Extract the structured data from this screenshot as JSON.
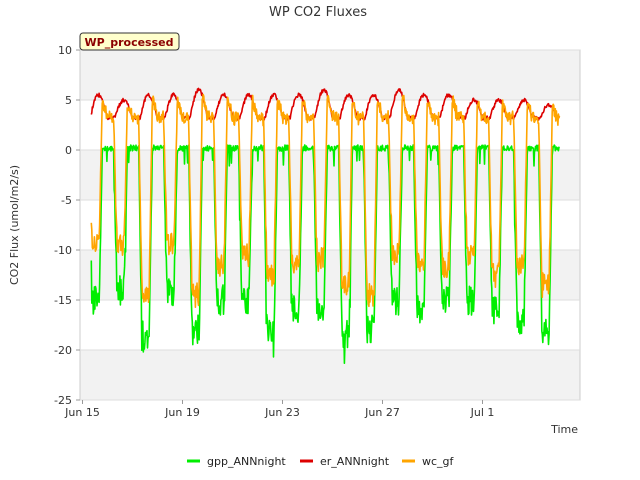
{
  "chart_data": {
    "type": "line",
    "title": "WP CO2 Fluxes",
    "badge": "WP_processed",
    "xlabel": "Time",
    "ylabel": "CO2 Flux (umol/m2/s)",
    "ylim": [
      -25,
      10
    ],
    "yticks": [
      10,
      5,
      0,
      -5,
      -10,
      -15,
      -20,
      -25
    ],
    "xlim_days": [
      -0.1,
      19.9
    ],
    "xticks": [
      {
        "day": 0,
        "label": "Jun 15"
      },
      {
        "day": 4,
        "label": "Jun 19"
      },
      {
        "day": 8,
        "label": "Jun 23"
      },
      {
        "day": 12,
        "label": "Jun 27"
      },
      {
        "day": 16,
        "label": "Jul 1"
      }
    ],
    "bands": [
      [
        5,
        10
      ],
      [
        -5,
        0
      ],
      [
        -15,
        -10
      ],
      [
        -25,
        -20
      ]
    ],
    "days": 19,
    "start_day": 0.35,
    "end_day": 19.1,
    "daily_gpp_min": [
      -17,
      -16,
      -20.5,
      -16,
      -20,
      -17,
      -17,
      -20,
      -18,
      -18,
      -20.5,
      -20,
      -17,
      -18,
      -17,
      -17,
      -18,
      -19,
      -20
    ],
    "daily_wc_min": [
      -10.5,
      -11,
      -16,
      -11,
      -16,
      -13,
      -12,
      -14,
      -13,
      -12.5,
      -15,
      -16,
      -12,
      -12.5,
      -13,
      -12,
      -14,
      -13,
      -15
    ],
    "daily_er_max": [
      5.5,
      5.0,
      5.5,
      5.5,
      6.0,
      5.5,
      5.5,
      5.5,
      5.5,
      6.0,
      5.5,
      5.5,
      6.0,
      5.5,
      5.5,
      5.0,
      5.0,
      5.0,
      4.5
    ],
    "series": [
      {
        "name": "gpp_ANNnight",
        "color": "#00ee00"
      },
      {
        "name": "er_ANNnight",
        "color": "#dd0000"
      },
      {
        "name": "wc_gf",
        "color": "#ffa500"
      }
    ]
  }
}
